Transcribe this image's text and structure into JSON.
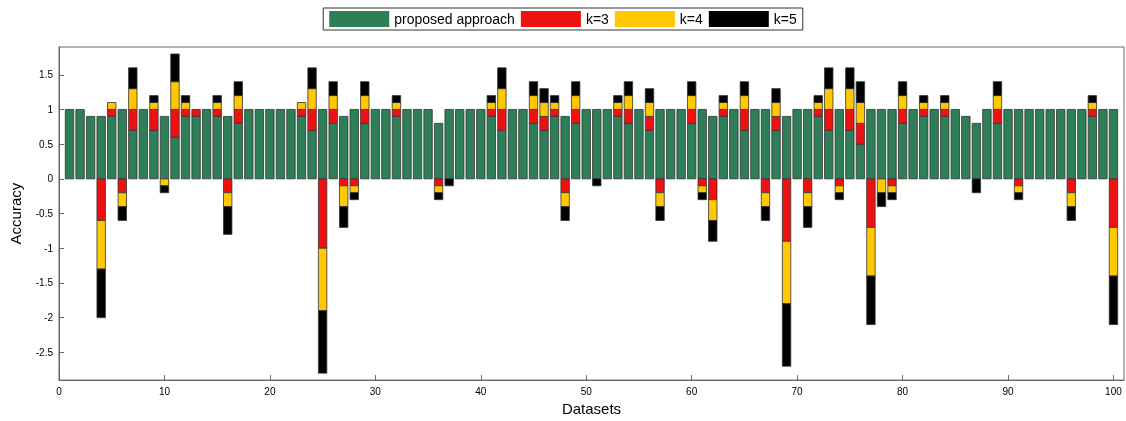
{
  "chart_data": {
    "type": "bar",
    "stacked": true,
    "xlabel": "Datasets",
    "ylabel": "Accuracy",
    "x": [
      1,
      2,
      3,
      4,
      5,
      6,
      7,
      8,
      9,
      10,
      11,
      12,
      13,
      14,
      15,
      16,
      17,
      18,
      19,
      20,
      21,
      22,
      23,
      24,
      25,
      26,
      27,
      28,
      29,
      30,
      31,
      32,
      33,
      34,
      35,
      36,
      37,
      38,
      39,
      40,
      41,
      42,
      43,
      44,
      45,
      46,
      47,
      48,
      49,
      50,
      51,
      52,
      53,
      54,
      55,
      56,
      57,
      58,
      59,
      60,
      61,
      62,
      63,
      64,
      65,
      66,
      67,
      68,
      69,
      70,
      71,
      72,
      73,
      74,
      75,
      76,
      77,
      78,
      79,
      80,
      81,
      82,
      83,
      84,
      85,
      86,
      87,
      88,
      89,
      90,
      91,
      92,
      93,
      94,
      95,
      96,
      97,
      98,
      99,
      100
    ],
    "series": [
      {
        "name": "proposed approach",
        "color": "#2e7f58",
        "values": [
          1,
          1,
          0.9,
          0.9,
          0.9,
          1,
          0.7,
          1,
          0.7,
          0.9,
          0.6,
          0.9,
          0.9,
          1,
          0.9,
          0.9,
          0.8,
          1,
          1,
          1,
          1,
          1,
          0.9,
          0.7,
          1,
          0.8,
          0.9,
          1,
          0.8,
          1,
          1,
          0.9,
          1,
          1,
          1,
          0.8,
          1,
          1,
          1,
          1,
          0.9,
          0.7,
          1,
          1,
          0.8,
          0.7,
          0.9,
          0.9,
          0.8,
          1,
          1,
          1,
          0.9,
          0.8,
          1,
          0.7,
          1,
          1,
          1,
          0.8,
          1,
          0.9,
          0.9,
          1,
          0.7,
          1,
          1,
          0.7,
          0.9,
          1,
          1,
          0.9,
          0.7,
          1,
          0.7,
          0.5,
          1,
          1,
          1,
          0.8,
          1,
          0.9,
          1,
          0.9,
          1,
          0.9,
          0.8,
          1,
          0.8,
          1,
          1,
          1,
          1,
          1,
          1,
          1,
          1,
          0.9,
          1,
          1
        ]
      },
      {
        "name": "k=3",
        "color": "#ee1111",
        "values": [
          null,
          null,
          null,
          -0.6,
          0.1,
          -0.2,
          0.3,
          null,
          0.3,
          null,
          0.4,
          0.1,
          0.1,
          null,
          0.1,
          -0.2,
          0.2,
          null,
          null,
          null,
          null,
          null,
          0.1,
          0.3,
          -1,
          0.2,
          -0.1,
          -0.1,
          0.2,
          null,
          null,
          0.1,
          null,
          null,
          null,
          -0.1,
          null,
          null,
          null,
          null,
          0.1,
          0.3,
          null,
          null,
          0.2,
          0.2,
          0.1,
          -0.2,
          0.2,
          null,
          null,
          null,
          0.1,
          0.2,
          null,
          0.2,
          -0.2,
          null,
          null,
          0.2,
          -0.1,
          -0.3,
          0.1,
          null,
          0.3,
          null,
          -0.2,
          0.2,
          -0.9,
          null,
          -0.2,
          0.1,
          0.3,
          -0.1,
          0.3,
          0.3,
          -0.7,
          null,
          -0.1,
          0.2,
          null,
          0.1,
          null,
          0.1,
          null,
          null,
          null,
          null,
          0.2,
          null,
          -0.1,
          null,
          null,
          null,
          null,
          -0.2,
          null,
          0.1,
          null,
          -0.7
        ]
      },
      {
        "name": "k=4",
        "color": "#ffc800",
        "values": [
          null,
          null,
          null,
          -0.7,
          0.1,
          -0.2,
          0.3,
          null,
          0.1,
          -0.1,
          0.4,
          0.1,
          null,
          null,
          0.1,
          -0.2,
          0.2,
          null,
          null,
          null,
          null,
          null,
          0.1,
          0.3,
          -0.9,
          0.2,
          -0.3,
          -0.1,
          0.2,
          null,
          null,
          0.1,
          null,
          null,
          null,
          -0.1,
          null,
          null,
          null,
          null,
          0.1,
          0.3,
          null,
          null,
          0.2,
          0.2,
          0.1,
          -0.2,
          0.2,
          null,
          null,
          null,
          0.1,
          0.2,
          null,
          0.2,
          -0.2,
          null,
          null,
          0.2,
          -0.1,
          -0.3,
          0.1,
          null,
          0.2,
          null,
          -0.2,
          0.2,
          -0.9,
          null,
          -0.2,
          0.1,
          0.3,
          -0.1,
          0.3,
          0.3,
          -0.7,
          -0.2,
          -0.1,
          0.2,
          null,
          0.1,
          null,
          0.1,
          null,
          null,
          null,
          null,
          0.2,
          null,
          -0.1,
          null,
          null,
          null,
          null,
          -0.2,
          null,
          0.1,
          null,
          -0.7
        ]
      },
      {
        "name": "k=5",
        "color": "#000000",
        "values": [
          null,
          null,
          null,
          -0.7,
          null,
          -0.2,
          0.3,
          null,
          0.1,
          -0.1,
          0.4,
          0.1,
          null,
          null,
          0.1,
          -0.4,
          0.2,
          null,
          null,
          null,
          null,
          null,
          null,
          0.3,
          -0.9,
          0.2,
          -0.3,
          -0.1,
          0.2,
          null,
          null,
          0.1,
          null,
          null,
          null,
          -0.1,
          -0.1,
          null,
          null,
          null,
          0.1,
          0.3,
          null,
          null,
          0.2,
          0.2,
          0.1,
          -0.2,
          0.2,
          null,
          -0.1,
          null,
          0.1,
          0.2,
          null,
          0.2,
          -0.2,
          null,
          null,
          0.2,
          -0.1,
          -0.3,
          0.1,
          null,
          0.2,
          null,
          -0.2,
          0.2,
          -0.9,
          null,
          -0.3,
          0.1,
          0.3,
          -0.1,
          0.3,
          0.3,
          -0.7,
          -0.2,
          -0.1,
          0.2,
          null,
          0.1,
          null,
          0.1,
          null,
          null,
          -0.2,
          null,
          0.2,
          null,
          -0.1,
          null,
          null,
          null,
          null,
          -0.2,
          null,
          0.1,
          null,
          -0.7
        ]
      }
    ],
    "xlim": [
      0,
      101
    ],
    "xticks": [
      0,
      10,
      20,
      30,
      40,
      50,
      60,
      70,
      80,
      90,
      100
    ],
    "ylim": [
      -2.9,
      1.9
    ],
    "yticks": [
      -2.5,
      -2,
      -1.5,
      -1,
      -0.5,
      0,
      0.5,
      1,
      1.5
    ],
    "grid": false,
    "legend": "top"
  }
}
